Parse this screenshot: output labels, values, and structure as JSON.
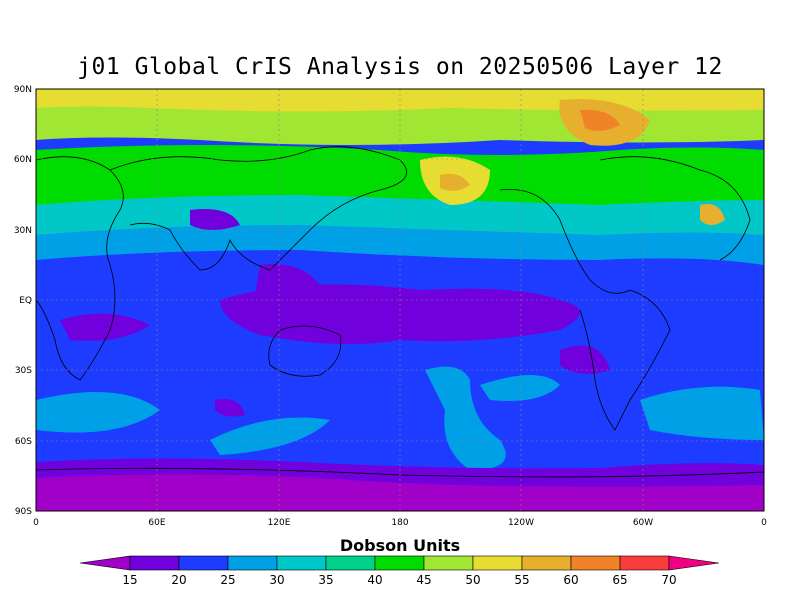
{
  "title": "j01 Global CrIS Analysis on 20250506 Layer 12",
  "map": {
    "lat_labels": [
      "90N",
      "60N",
      "30N",
      "EQ",
      "30S",
      "60S",
      "90S"
    ],
    "lon_labels": [
      "0",
      "60E",
      "120E",
      "180",
      "120W",
      "60W",
      "0"
    ]
  },
  "colorbar": {
    "title": "Dobson Units",
    "levels": [
      "15",
      "20",
      "25",
      "30",
      "35",
      "40",
      "45",
      "50",
      "55",
      "60",
      "65",
      "70"
    ],
    "colors": [
      "#a000c8",
      "#7000dc",
      "#1e3cff",
      "#00a0e6",
      "#00c8c8",
      "#00d28c",
      "#00dc00",
      "#a0e632",
      "#e6dc32",
      "#e6af2d",
      "#f08228",
      "#fa3c3c",
      "#f00082"
    ]
  },
  "chart_data": {
    "type": "heatmap",
    "title": "j01 Global CrIS Analysis on 20250506 Layer 12",
    "units": "Dobson Units",
    "x_axis": [
      "0",
      "60E",
      "120E",
      "180",
      "120W",
      "60W",
      "0"
    ],
    "y_axis": [
      "90N",
      "60N",
      "30N",
      "EQ",
      "30S",
      "60S",
      "90S"
    ],
    "value_range": [
      15,
      70
    ],
    "contour_levels": [
      15,
      20,
      25,
      30,
      35,
      40,
      45,
      50,
      55,
      60,
      65,
      70
    ],
    "regions": [
      {
        "region": "polar north / Arctic",
        "value": 50
      },
      {
        "region": "northern Russia / Siberia",
        "value": 55
      },
      {
        "region": "northern mid-latitudes",
        "value": 45
      },
      {
        "region": "north Pacific near Alaska",
        "value": 55
      },
      {
        "region": "northern subtropics",
        "value": 35
      },
      {
        "region": "tropics / equatorial Pacific",
        "value": 20
      },
      {
        "region": "southern subtropics",
        "value": 25
      },
      {
        "region": "southern mid-latitudes patches",
        "value": 30
      },
      {
        "region": "southern ocean",
        "value": 25
      },
      {
        "region": "Antarctica",
        "value": 15
      }
    ]
  }
}
